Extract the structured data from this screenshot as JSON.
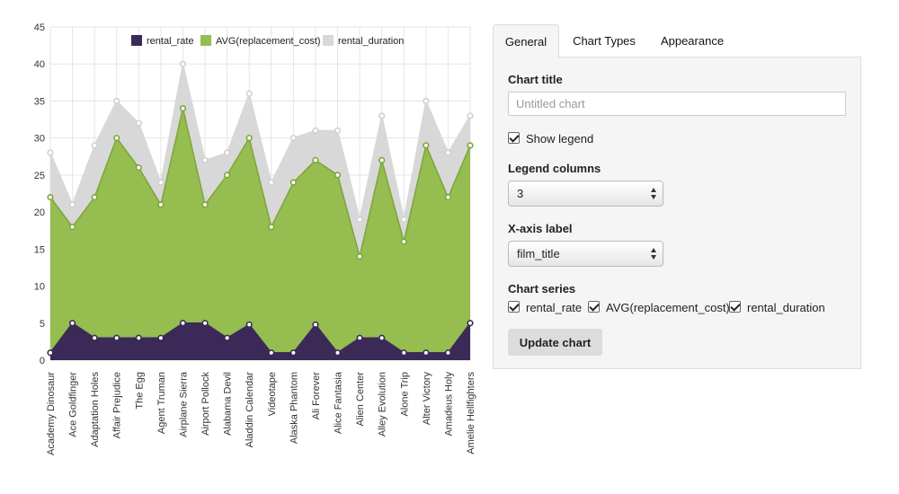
{
  "colors": {
    "rental_rate": "#3b2a57",
    "replacement": "#95bd4f",
    "replacement_stroke": "#7ea43c",
    "rental_duration": "#d8d8d8",
    "gridline": "#e5e5e5"
  },
  "chart_data": {
    "type": "area",
    "stacked": false,
    "x": [
      "Academy Dinosaur",
      "Ace Goldfinger",
      "Adaptation Holes",
      "Affair Prejudice",
      "The Egg",
      "Agent Truman",
      "Airplane Sierra",
      "Airport Pollock",
      "Alabama Devil",
      "Aladdin Calendar",
      "Videotape",
      "Alaska Phantom",
      "Ali Forever",
      "Alice Fantasia",
      "Alien Center",
      "Alley Evolution",
      "Alone Trip",
      "Alter Victory",
      "Amadeus Holy",
      "Amelie Hellfighters"
    ],
    "series": [
      {
        "name": "rental_rate",
        "values": [
          1,
          5,
          3,
          3,
          3,
          3,
          5,
          5,
          3,
          4.8,
          1,
          1,
          4.8,
          1,
          3,
          3,
          1,
          1,
          1,
          5
        ]
      },
      {
        "name": "AVG(replacement_cost)",
        "values": [
          22,
          18,
          22,
          30,
          26,
          21,
          34,
          21,
          25,
          30,
          18,
          24,
          27,
          25,
          14,
          27,
          16,
          29,
          22,
          29
        ]
      },
      {
        "name": "rental_duration",
        "values": [
          28,
          21,
          29,
          35,
          32,
          24,
          40,
          27,
          28,
          36,
          24,
          30,
          31,
          31,
          19,
          33,
          19,
          35,
          28,
          33
        ]
      }
    ],
    "ylim": [
      0,
      45
    ],
    "yticks": [
      "0",
      "5",
      "10",
      "15",
      "20",
      "25",
      "30",
      "35",
      "40",
      "45"
    ],
    "grid": true,
    "legend_position": "top"
  },
  "panel": {
    "tabs": [
      {
        "label": "General",
        "active": true
      },
      {
        "label": "Chart Types",
        "active": false
      },
      {
        "label": "Appearance",
        "active": false
      }
    ],
    "chart_title_label": "Chart title",
    "chart_title_placeholder": "Untitled chart",
    "chart_title_value": "",
    "show_legend_label": "Show legend",
    "show_legend_checked": true,
    "legend_columns_label": "Legend columns",
    "legend_columns_value": "3",
    "x_axis_label": "X-axis label",
    "x_axis_value": "film_title",
    "chart_series_label": "Chart series",
    "series_options": [
      {
        "label": "rental_rate",
        "checked": true
      },
      {
        "label": "AVG(replacement_cost)",
        "checked": true
      },
      {
        "label": "rental_duration",
        "checked": true
      }
    ],
    "update_button": "Update chart"
  }
}
